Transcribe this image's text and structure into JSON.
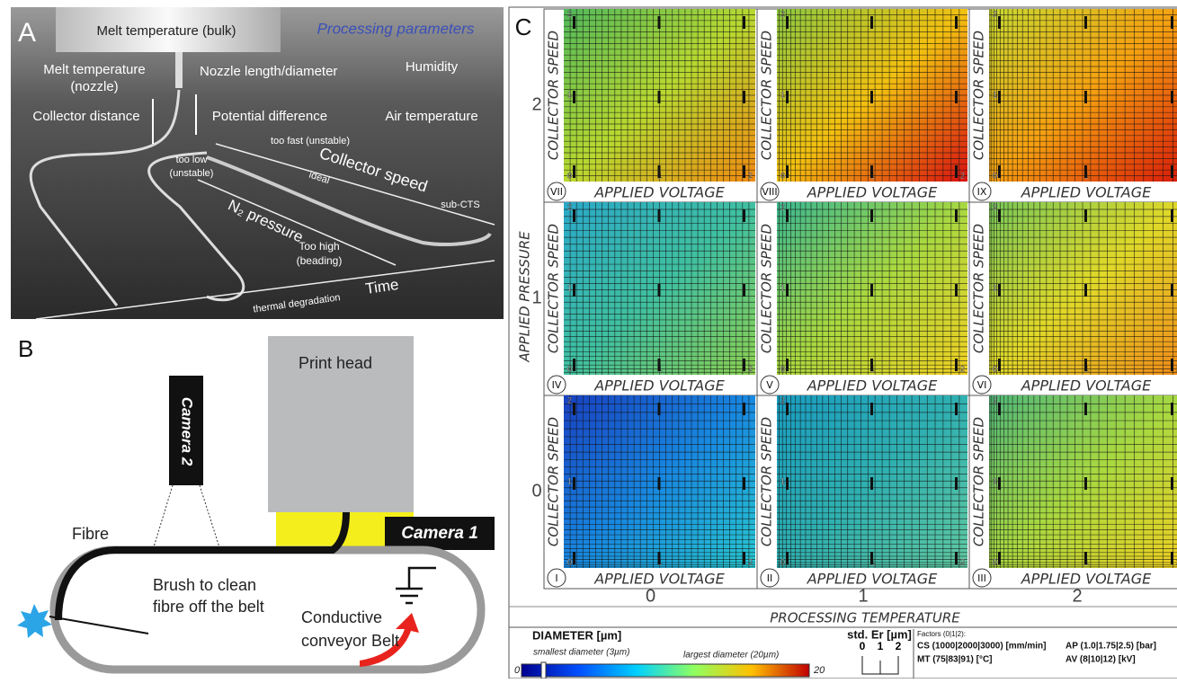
{
  "panel_a": {
    "letter": "A",
    "title": "Processing parameters",
    "labels": [
      "Melt temperature (bulk)",
      "Melt temperature",
      "(nozzle)",
      "Nozzle length/diameter",
      "Humidity",
      "Collector distance",
      "Potential difference",
      "Air temperature",
      "too fast (unstable)",
      "Collector speed",
      "too low",
      "(unstable)",
      "ideal",
      "N₂ pressure",
      "sub-CTS",
      "Too high",
      "(beading)",
      "Time",
      "thermal degradation"
    ]
  },
  "panel_b": {
    "letter": "B",
    "labels": [
      "Print head",
      "Camera 2",
      "Camera 1",
      "Fibre",
      "Brush to clean",
      "fibre off the belt",
      "Conductive",
      "conveyor Belt"
    ]
  },
  "panel_c": {
    "letter": "C",
    "y_axis_label": "APPLIED PRESSURE",
    "row_labels": [
      "2",
      "1",
      "0"
    ],
    "x_axis_label": "PROCESSING TEMPERATURE",
    "col_labels": [
      "0",
      "1",
      "2"
    ],
    "cell_x_label": "APPLIED VOLTAGE",
    "cell_y_label": "COLLECTOR SPEED",
    "cell_ticks": [
      "0",
      "1",
      "2"
    ],
    "cells": [
      "VII",
      "VIII",
      "IX",
      "IV",
      "V",
      "VI",
      "I",
      "II",
      "III"
    ],
    "legend": {
      "title": "DIAMETER [µm]",
      "smallest": "smallest diameter (3µm)",
      "largest": "largest diameter (20µm)",
      "min": "0",
      "max": "20",
      "std_title": "std. Er [µm]",
      "std_ticks": [
        "0",
        "1",
        "2"
      ],
      "factors_title": "Factors (0|1|2):",
      "factors": [
        "CS (1000|2000|3000) [mm/min]",
        "AP (1.0|1.75|2.5) [bar]",
        "MT (75|83|91) [°C]",
        "AV (8|10|12) [kV]"
      ]
    }
  }
}
